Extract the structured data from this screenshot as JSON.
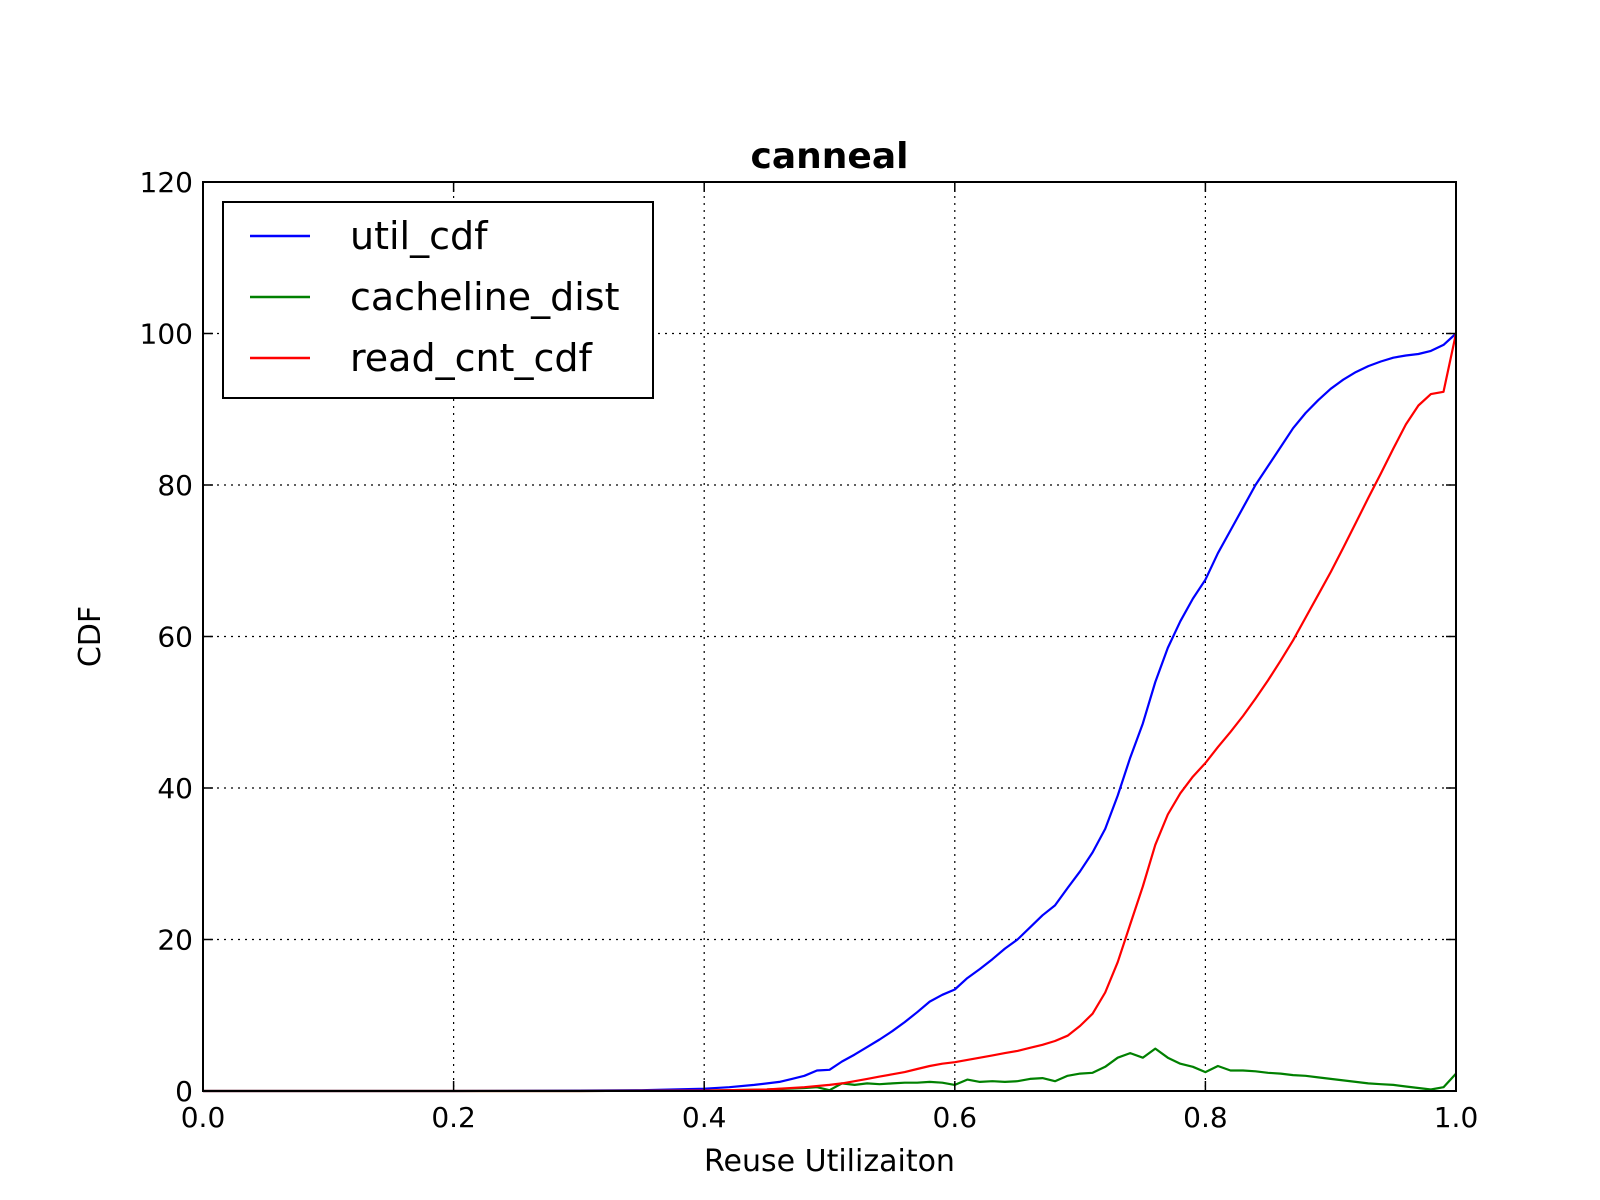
{
  "chart_data": {
    "type": "line",
    "title": "canneal",
    "xlabel": "Reuse Utilizaiton",
    "ylabel": "CDF",
    "xlim": [
      0.0,
      1.0
    ],
    "ylim": [
      0,
      120
    ],
    "xticks": [
      "0.0",
      "0.2",
      "0.4",
      "0.6",
      "0.8",
      "1.0"
    ],
    "yticks": [
      "0",
      "20",
      "40",
      "60",
      "80",
      "100",
      "120"
    ],
    "grid": true,
    "legend_position": "top-left",
    "series": [
      {
        "name": "util_cdf",
        "color": "#0000ff",
        "points": [
          [
            0,
            0
          ],
          [
            0.1,
            0
          ],
          [
            0.2,
            0
          ],
          [
            0.3,
            0.05
          ],
          [
            0.35,
            0.1
          ],
          [
            0.4,
            0.3
          ],
          [
            0.42,
            0.5
          ],
          [
            0.44,
            0.8
          ],
          [
            0.46,
            1.2
          ],
          [
            0.47,
            1.6
          ],
          [
            0.48,
            2.0
          ],
          [
            0.49,
            2.7
          ],
          [
            0.5,
            2.8
          ],
          [
            0.51,
            3.9
          ],
          [
            0.52,
            4.8
          ],
          [
            0.53,
            5.8
          ],
          [
            0.54,
            6.8
          ],
          [
            0.55,
            7.9
          ],
          [
            0.56,
            9.1
          ],
          [
            0.57,
            10.4
          ],
          [
            0.58,
            11.8
          ],
          [
            0.59,
            12.7
          ],
          [
            0.6,
            13.4
          ],
          [
            0.61,
            14.9
          ],
          [
            0.62,
            16.1
          ],
          [
            0.63,
            17.4
          ],
          [
            0.64,
            18.8
          ],
          [
            0.65,
            20.0
          ],
          [
            0.66,
            21.6
          ],
          [
            0.67,
            23.2
          ],
          [
            0.68,
            24.5
          ],
          [
            0.69,
            26.8
          ],
          [
            0.7,
            29.0
          ],
          [
            0.71,
            31.5
          ],
          [
            0.72,
            34.6
          ],
          [
            0.73,
            39.0
          ],
          [
            0.74,
            44.0
          ],
          [
            0.75,
            48.5
          ],
          [
            0.76,
            54.0
          ],
          [
            0.77,
            58.5
          ],
          [
            0.78,
            62.0
          ],
          [
            0.79,
            65.0
          ],
          [
            0.8,
            67.5
          ],
          [
            0.81,
            71.0
          ],
          [
            0.82,
            74.0
          ],
          [
            0.83,
            77.0
          ],
          [
            0.84,
            80.0
          ],
          [
            0.85,
            82.5
          ],
          [
            0.86,
            85.0
          ],
          [
            0.87,
            87.5
          ],
          [
            0.88,
            89.5
          ],
          [
            0.89,
            91.2
          ],
          [
            0.9,
            92.7
          ],
          [
            0.91,
            93.9
          ],
          [
            0.92,
            94.9
          ],
          [
            0.93,
            95.7
          ],
          [
            0.94,
            96.3
          ],
          [
            0.95,
            96.8
          ],
          [
            0.96,
            97.1
          ],
          [
            0.97,
            97.3
          ],
          [
            0.98,
            97.7
          ],
          [
            0.99,
            98.5
          ],
          [
            1.0,
            100
          ]
        ]
      },
      {
        "name": "cacheline_dist",
        "color": "#008000",
        "points": [
          [
            0,
            0
          ],
          [
            0.1,
            0
          ],
          [
            0.2,
            0
          ],
          [
            0.3,
            0
          ],
          [
            0.4,
            0.05
          ],
          [
            0.45,
            0.2
          ],
          [
            0.48,
            0.4
          ],
          [
            0.49,
            0.5
          ],
          [
            0.5,
            0.1
          ],
          [
            0.51,
            1.0
          ],
          [
            0.52,
            0.8
          ],
          [
            0.53,
            1.0
          ],
          [
            0.54,
            0.9
          ],
          [
            0.55,
            1.0
          ],
          [
            0.56,
            1.1
          ],
          [
            0.57,
            1.1
          ],
          [
            0.58,
            1.2
          ],
          [
            0.59,
            1.1
          ],
          [
            0.6,
            0.8
          ],
          [
            0.61,
            1.5
          ],
          [
            0.62,
            1.2
          ],
          [
            0.63,
            1.3
          ],
          [
            0.64,
            1.2
          ],
          [
            0.65,
            1.3
          ],
          [
            0.66,
            1.6
          ],
          [
            0.67,
            1.7
          ],
          [
            0.68,
            1.3
          ],
          [
            0.69,
            2.0
          ],
          [
            0.7,
            2.3
          ],
          [
            0.71,
            2.4
          ],
          [
            0.72,
            3.2
          ],
          [
            0.73,
            4.4
          ],
          [
            0.74,
            5.0
          ],
          [
            0.75,
            4.4
          ],
          [
            0.76,
            5.6
          ],
          [
            0.77,
            4.4
          ],
          [
            0.78,
            3.6
          ],
          [
            0.79,
            3.2
          ],
          [
            0.8,
            2.5
          ],
          [
            0.81,
            3.3
          ],
          [
            0.82,
            2.7
          ],
          [
            0.83,
            2.7
          ],
          [
            0.84,
            2.6
          ],
          [
            0.85,
            2.4
          ],
          [
            0.86,
            2.3
          ],
          [
            0.87,
            2.1
          ],
          [
            0.88,
            2.0
          ],
          [
            0.89,
            1.8
          ],
          [
            0.9,
            1.6
          ],
          [
            0.91,
            1.4
          ],
          [
            0.92,
            1.2
          ],
          [
            0.93,
            1.0
          ],
          [
            0.94,
            0.9
          ],
          [
            0.95,
            0.8
          ],
          [
            0.96,
            0.6
          ],
          [
            0.97,
            0.4
          ],
          [
            0.98,
            0.2
          ],
          [
            0.99,
            0.5
          ],
          [
            1.0,
            2.3
          ]
        ]
      },
      {
        "name": "read_cnt_cdf",
        "color": "#ff0000",
        "points": [
          [
            0,
            0
          ],
          [
            0.1,
            0
          ],
          [
            0.2,
            0
          ],
          [
            0.3,
            0
          ],
          [
            0.4,
            0.05
          ],
          [
            0.45,
            0.2
          ],
          [
            0.48,
            0.5
          ],
          [
            0.5,
            0.8
          ],
          [
            0.51,
            1.0
          ],
          [
            0.52,
            1.3
          ],
          [
            0.53,
            1.6
          ],
          [
            0.54,
            1.9
          ],
          [
            0.55,
            2.2
          ],
          [
            0.56,
            2.5
          ],
          [
            0.57,
            2.9
          ],
          [
            0.58,
            3.3
          ],
          [
            0.59,
            3.6
          ],
          [
            0.6,
            3.8
          ],
          [
            0.61,
            4.1
          ],
          [
            0.62,
            4.4
          ],
          [
            0.63,
            4.7
          ],
          [
            0.64,
            5.0
          ],
          [
            0.65,
            5.3
          ],
          [
            0.66,
            5.7
          ],
          [
            0.67,
            6.1
          ],
          [
            0.68,
            6.6
          ],
          [
            0.69,
            7.3
          ],
          [
            0.7,
            8.6
          ],
          [
            0.71,
            10.2
          ],
          [
            0.72,
            13.0
          ],
          [
            0.73,
            17.0
          ],
          [
            0.74,
            22.0
          ],
          [
            0.75,
            27.0
          ],
          [
            0.76,
            32.5
          ],
          [
            0.77,
            36.5
          ],
          [
            0.78,
            39.3
          ],
          [
            0.79,
            41.5
          ],
          [
            0.8,
            43.3
          ],
          [
            0.81,
            45.4
          ],
          [
            0.82,
            47.4
          ],
          [
            0.83,
            49.5
          ],
          [
            0.84,
            51.8
          ],
          [
            0.85,
            54.2
          ],
          [
            0.86,
            56.8
          ],
          [
            0.87,
            59.5
          ],
          [
            0.88,
            62.5
          ],
          [
            0.89,
            65.5
          ],
          [
            0.9,
            68.5
          ],
          [
            0.91,
            71.7
          ],
          [
            0.92,
            75.0
          ],
          [
            0.93,
            78.3
          ],
          [
            0.94,
            81.5
          ],
          [
            0.95,
            84.8
          ],
          [
            0.96,
            88.0
          ],
          [
            0.97,
            90.5
          ],
          [
            0.98,
            92.0
          ],
          [
            0.99,
            92.3
          ],
          [
            1.0,
            100
          ]
        ]
      }
    ]
  }
}
